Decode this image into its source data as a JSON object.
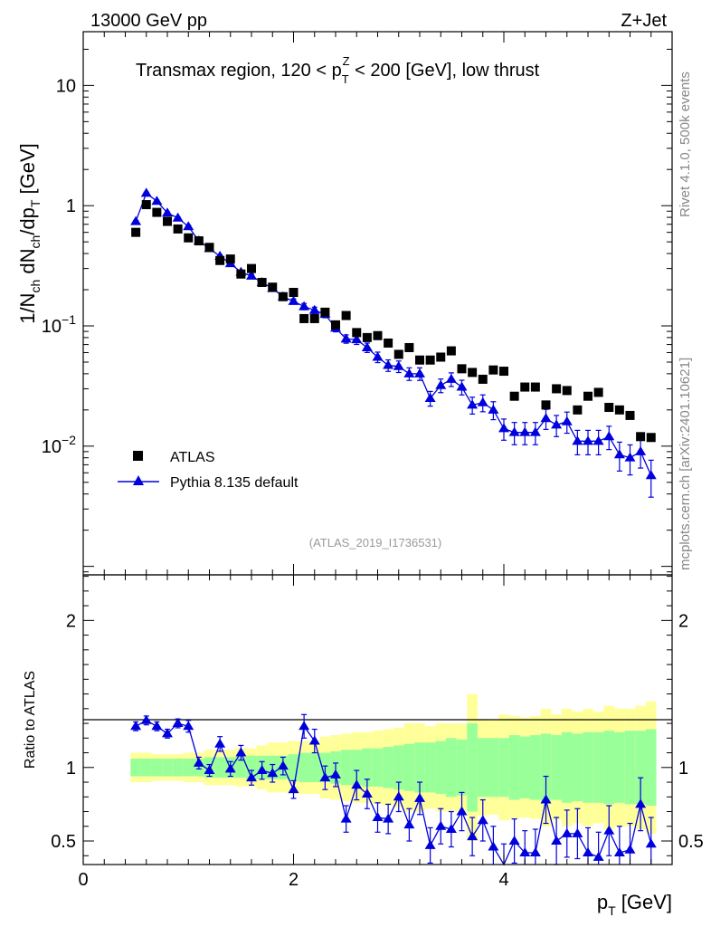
{
  "header": {
    "left": "13000 GeV pp",
    "right": "Z+Jet",
    "title_prefix": "Transmax region, 120 < p",
    "title_sub": "T",
    "title_sup": "Z",
    "title_suffix": " < 200 [GeV], low thrust"
  },
  "side_text": {
    "rivet": "Rivet 4.1.0,  500k events",
    "mcplots": "mcplots.cern.ch [arXiv:2401.10621]"
  },
  "watermark": "(ATLAS_2019_I1736531)",
  "colors": {
    "atlas": "#000000",
    "pythia": "#0000dd",
    "band_inner": "#99ff99",
    "band_outer": "#ffff99",
    "axis": "#000000",
    "side_text": "#888888"
  },
  "chart_data": {
    "type": "scatter",
    "x_label": "p_T [GeV]",
    "y_label": "1/N_ch dN_ch/dp_T [GeV]",
    "ratio_label": "Ratio to ATLAS",
    "xlim": [
      0,
      5.6
    ],
    "ylim": [
      0.00085,
      28
    ],
    "ratio_ylim": [
      0.34,
      2.31
    ],
    "x_ticks": [
      0,
      2,
      4
    ],
    "y_ticks": [
      {
        "value": 0.01,
        "label": "10^-2"
      },
      {
        "value": 0.1,
        "label": "10^-1"
      },
      {
        "value": 1,
        "label": "1"
      },
      {
        "value": 10,
        "label": "10"
      }
    ],
    "ratio_ticks": [
      0.5,
      1,
      2
    ],
    "legend": [
      "ATLAS",
      "Pythia 8.135 default"
    ],
    "x": [
      0.5,
      0.6,
      0.7,
      0.8,
      0.9,
      1.0,
      1.1,
      1.2,
      1.3,
      1.4,
      1.5,
      1.6,
      1.7,
      1.8,
      1.9,
      2.0,
      2.1,
      2.2,
      2.3,
      2.4,
      2.5,
      2.6,
      2.7,
      2.8,
      2.9,
      3.0,
      3.1,
      3.2,
      3.3,
      3.4,
      3.5,
      3.6,
      3.7,
      3.8,
      3.9,
      4.0,
      4.1,
      4.2,
      4.3,
      4.4,
      4.5,
      4.6,
      4.7,
      4.8,
      4.9,
      5.0,
      5.1,
      5.2,
      5.3,
      5.4
    ],
    "atlas": [
      0.6,
      1.02,
      0.88,
      0.74,
      0.64,
      0.54,
      0.51,
      0.45,
      0.35,
      0.36,
      0.27,
      0.3,
      0.23,
      0.21,
      0.175,
      0.19,
      0.115,
      0.115,
      0.13,
      0.102,
      0.122,
      0.088,
      0.08,
      0.083,
      0.072,
      0.058,
      0.066,
      0.052,
      0.052,
      0.055,
      0.062,
      0.044,
      0.041,
      0.036,
      0.043,
      0.042,
      0.026,
      0.031,
      0.031,
      0.022,
      0.03,
      0.029,
      0.02,
      0.026,
      0.028,
      0.021,
      0.02,
      0.018,
      0.012,
      0.0118
    ],
    "pythia": [
      0.74,
      1.27,
      1.09,
      0.87,
      0.79,
      0.67,
      0.51,
      0.44,
      0.38,
      0.33,
      0.28,
      0.26,
      0.23,
      0.205,
      0.175,
      0.16,
      0.145,
      0.135,
      0.125,
      0.096,
      0.078,
      0.077,
      0.066,
      0.055,
      0.047,
      0.046,
      0.04,
      0.04,
      0.025,
      0.032,
      0.036,
      0.031,
      0.022,
      0.023,
      0.02,
      0.014,
      0.013,
      0.013,
      0.013,
      0.017,
      0.015,
      0.016,
      0.011,
      0.011,
      0.011,
      0.012,
      0.0085,
      0.008,
      0.009,
      0.0057
    ],
    "pythia_err": [
      0.02,
      0.02,
      0.02,
      0.02,
      0.02,
      0.025,
      0.025,
      0.03,
      0.03,
      0.03,
      0.035,
      0.035,
      0.04,
      0.045,
      0.05,
      0.05,
      0.06,
      0.06,
      0.065,
      0.07,
      0.08,
      0.09,
      0.09,
      0.1,
      0.11,
      0.11,
      0.12,
      0.12,
      0.14,
      0.13,
      0.13,
      0.14,
      0.16,
      0.16,
      0.17,
      0.2,
      0.21,
      0.21,
      0.21,
      0.19,
      0.2,
      0.2,
      0.23,
      0.23,
      0.23,
      0.22,
      0.27,
      0.28,
      0.27,
      0.34
    ],
    "ratio": [
      1.28,
      1.32,
      1.28,
      1.23,
      1.3,
      1.28,
      1.03,
      0.98,
      1.16,
      0.99,
      1.1,
      0.93,
      0.98,
      0.96,
      1.01,
      0.85,
      1.28,
      1.18,
      0.93,
      0.95,
      0.65,
      0.88,
      0.82,
      0.66,
      0.65,
      0.8,
      0.61,
      0.79,
      0.47,
      0.6,
      0.58,
      0.7,
      0.53,
      0.64,
      0.46,
      0.33,
      0.5,
      0.42,
      0.42,
      0.78,
      0.5,
      0.55,
      0.55,
      0.42,
      0.39,
      0.57,
      0.42,
      0.44,
      0.75,
      0.48
    ],
    "ratio_err": [
      0.03,
      0.03,
      0.03,
      0.03,
      0.03,
      0.04,
      0.04,
      0.04,
      0.05,
      0.05,
      0.05,
      0.05,
      0.06,
      0.06,
      0.06,
      0.06,
      0.08,
      0.08,
      0.08,
      0.08,
      0.09,
      0.1,
      0.1,
      0.1,
      0.1,
      0.1,
      0.11,
      0.11,
      0.12,
      0.12,
      0.12,
      0.13,
      0.13,
      0.14,
      0.14,
      0.15,
      0.15,
      0.15,
      0.16,
      0.16,
      0.16,
      0.16,
      0.17,
      0.17,
      0.17,
      0.17,
      0.18,
      0.18,
      0.18,
      0.18
    ],
    "band_inner": [
      0.06,
      0.06,
      0.06,
      0.06,
      0.06,
      0.06,
      0.06,
      0.07,
      0.07,
      0.07,
      0.07,
      0.08,
      0.08,
      0.08,
      0.08,
      0.09,
      0.1,
      0.1,
      0.1,
      0.11,
      0.12,
      0.12,
      0.13,
      0.13,
      0.14,
      0.15,
      0.16,
      0.17,
      0.17,
      0.18,
      0.2,
      0.19,
      0.3,
      0.2,
      0.2,
      0.2,
      0.22,
      0.21,
      0.22,
      0.23,
      0.22,
      0.24,
      0.23,
      0.24,
      0.24,
      0.25,
      0.24,
      0.25,
      0.25,
      0.26
    ],
    "band_outer": [
      0.1,
      0.1,
      0.09,
      0.09,
      0.09,
      0.1,
      0.1,
      0.12,
      0.12,
      0.12,
      0.13,
      0.13,
      0.15,
      0.17,
      0.17,
      0.18,
      0.18,
      0.18,
      0.21,
      0.22,
      0.23,
      0.24,
      0.24,
      0.25,
      0.26,
      0.27,
      0.3,
      0.3,
      0.28,
      0.3,
      0.3,
      0.3,
      0.5,
      0.33,
      0.32,
      0.36,
      0.35,
      0.34,
      0.35,
      0.4,
      0.36,
      0.4,
      0.38,
      0.4,
      0.38,
      0.42,
      0.4,
      0.4,
      0.42,
      0.45
    ]
  }
}
